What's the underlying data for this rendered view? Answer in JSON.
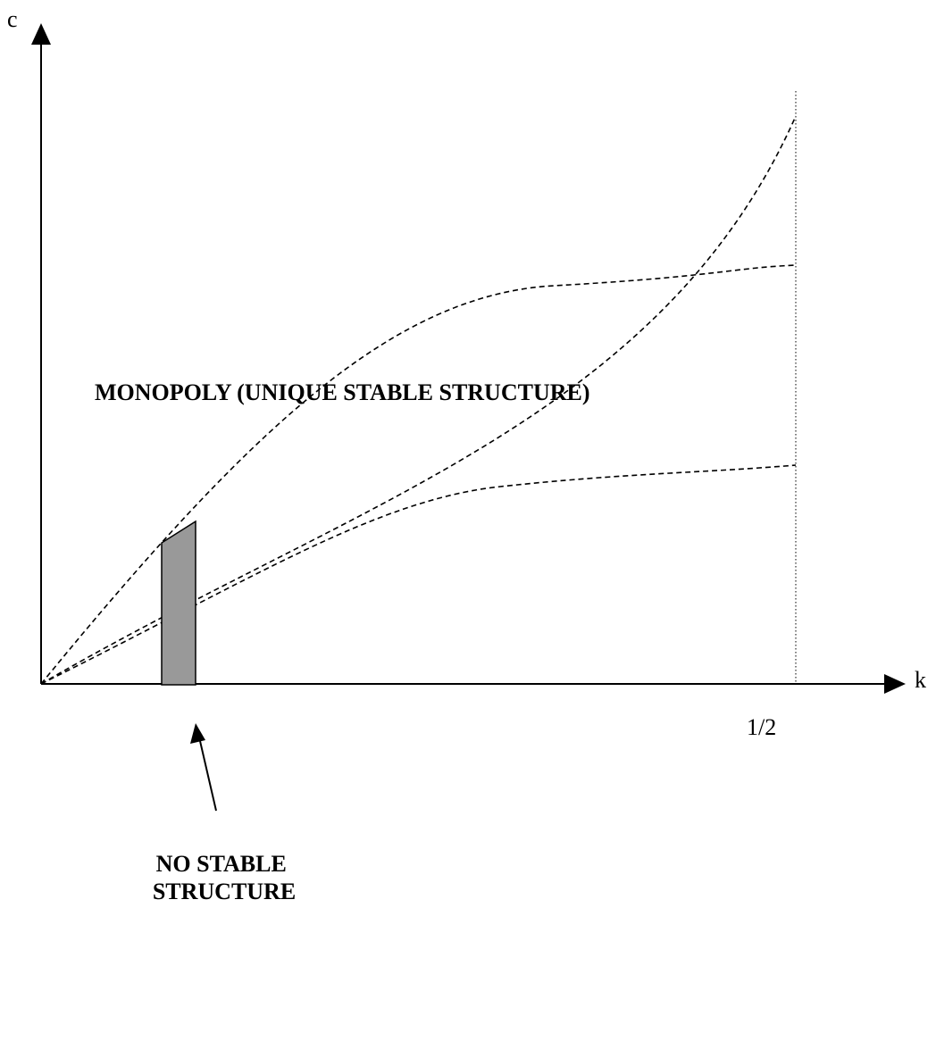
{
  "axes": {
    "y_label": "c",
    "x_label": "k",
    "x_tick_label": "1/2"
  },
  "regions": {
    "monopoly_label": "MONOPOLY (UNIQUE STABLE STRUCTURE)",
    "no_stable_line1": "NO STABLE",
    "no_stable_line2": "STRUCTURE"
  },
  "colors": {
    "shaded_region": "#999999",
    "ink": "#000000"
  }
}
